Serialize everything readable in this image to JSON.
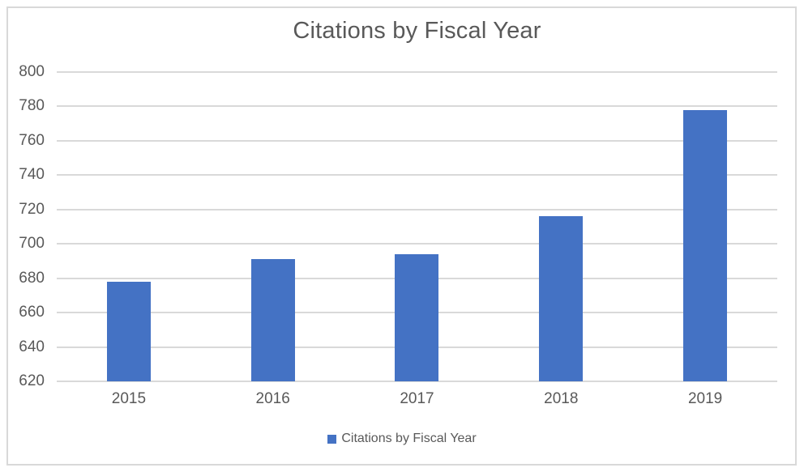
{
  "chart_data": {
    "type": "bar",
    "title": "Citations by Fiscal Year",
    "categories": [
      "2015",
      "2016",
      "2017",
      "2018",
      "2019"
    ],
    "values": [
      678,
      691,
      694,
      716,
      778
    ],
    "series": [
      {
        "name": "Citations by Fiscal Year",
        "values": [
          678,
          691,
          694,
          716,
          778
        ]
      }
    ],
    "xlabel": "",
    "ylabel": "",
    "ylim": [
      620,
      800
    ],
    "y_ticks": [
      800,
      780,
      760,
      740,
      720,
      700,
      680,
      660,
      640,
      620
    ],
    "grid": true,
    "legend": {
      "label": "Citations by Fiscal Year",
      "position": "bottom"
    },
    "colors": {
      "bar": "#4472C4",
      "gridline": "#D9D9D9",
      "border": "#D9D9D9",
      "text": "#595959",
      "background": "#FFFFFF"
    }
  }
}
